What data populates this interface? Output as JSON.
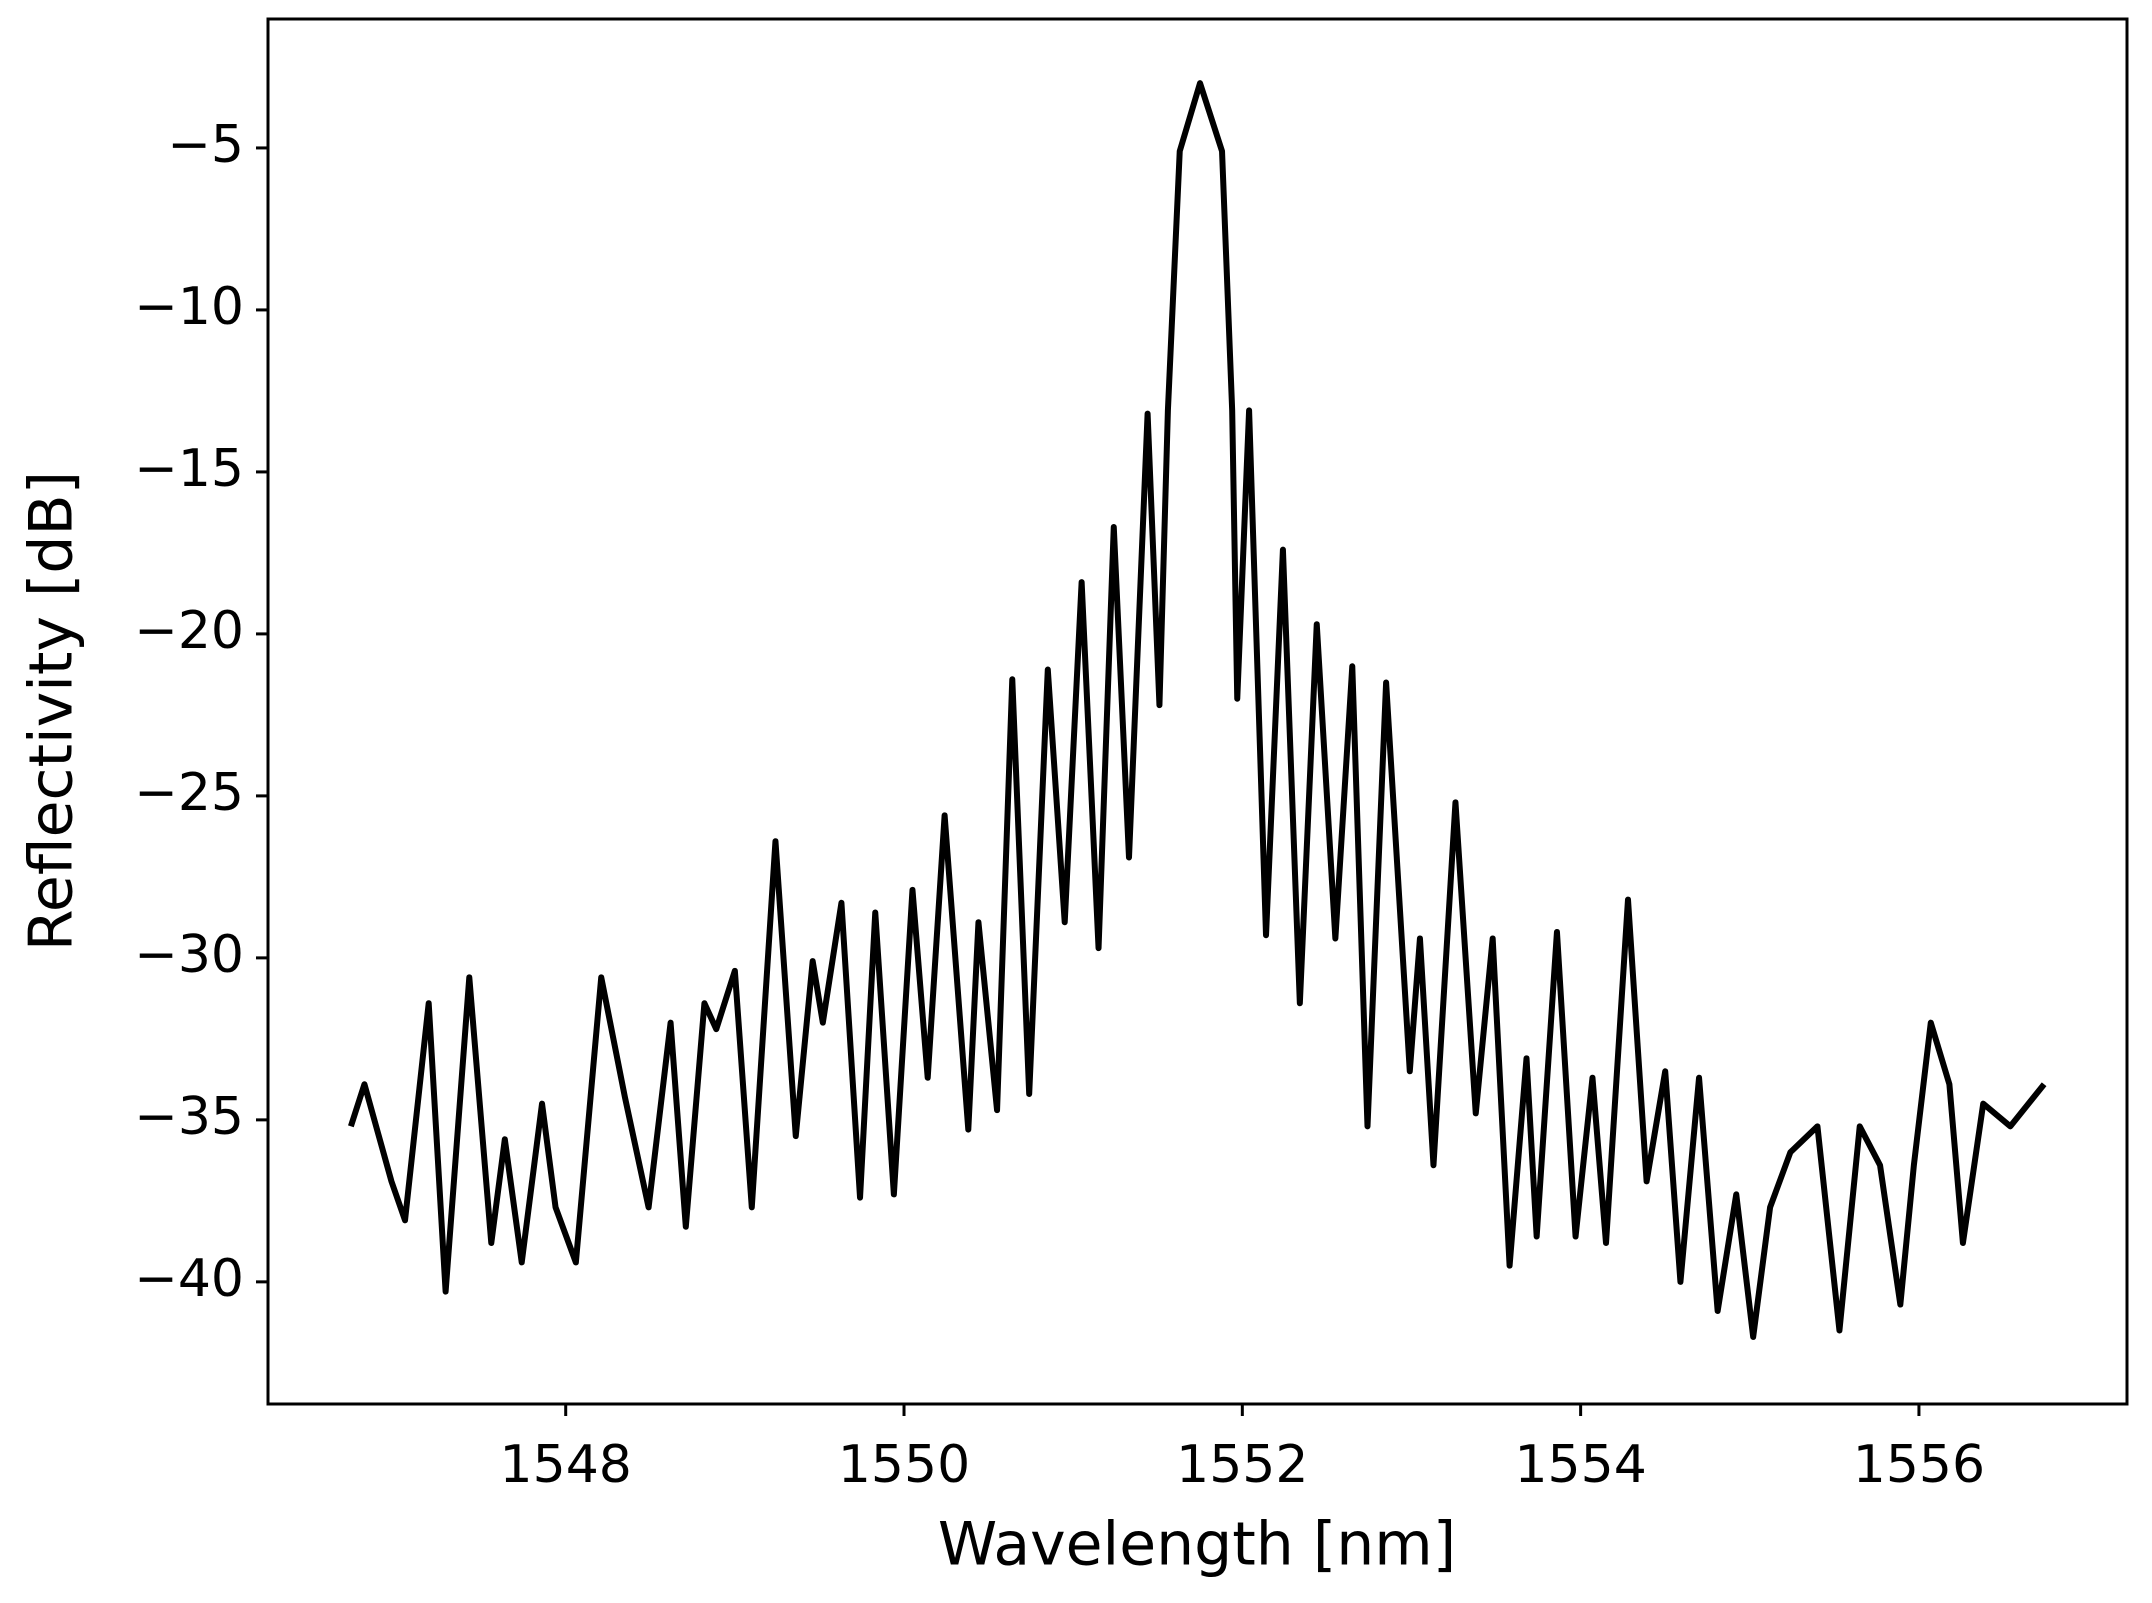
{
  "chart_data": {
    "type": "line",
    "x_label": "Wavelength [nm]",
    "y_label": "Reflectivity [dB]",
    "xlim": [
      1546.24,
      1557.23
    ],
    "ylim": [
      -43.77,
      -1.02
    ],
    "xticks": [
      1548,
      1550,
      1552,
      1554,
      1556
    ],
    "yticks": [
      {
        "value": -40,
        "label": "−40"
      },
      {
        "value": -35,
        "label": "−35"
      },
      {
        "value": -30,
        "label": "−30"
      },
      {
        "value": -25,
        "label": "−25"
      },
      {
        "value": -20,
        "label": "−20"
      },
      {
        "value": -15,
        "label": "−15"
      },
      {
        "value": -10,
        "label": "−10"
      },
      {
        "value": -5,
        "label": "−5"
      }
    ],
    "series": [
      {
        "color": "#000000",
        "x": [
          1546.73,
          1546.81,
          1546.97,
          1547.05,
          1547.19,
          1547.29,
          1547.43,
          1547.56,
          1547.64,
          1547.74,
          1547.86,
          1547.94,
          1548.06,
          1548.21,
          1548.35,
          1548.49,
          1548.62,
          1548.71,
          1548.82,
          1548.89,
          1549.0,
          1549.1,
          1549.24,
          1549.36,
          1549.46,
          1549.52,
          1549.63,
          1549.74,
          1549.83,
          1549.94,
          1550.05,
          1550.14,
          1550.24,
          1550.38,
          1550.44,
          1550.55,
          1550.64,
          1550.74,
          1550.85,
          1550.95,
          1551.05,
          1551.15,
          1551.24,
          1551.33,
          1551.44,
          1551.51,
          1551.56,
          1551.63,
          1551.75,
          1551.88,
          1551.94,
          1551.97,
          1552.04,
          1552.14,
          1552.24,
          1552.34,
          1552.44,
          1552.55,
          1552.65,
          1552.74,
          1552.85,
          1552.99,
          1553.05,
          1553.13,
          1553.26,
          1553.38,
          1553.48,
          1553.58,
          1553.68,
          1553.74,
          1553.86,
          1553.97,
          1554.07,
          1554.15,
          1554.28,
          1554.39,
          1554.5,
          1554.59,
          1554.7,
          1554.81,
          1554.92,
          1555.02,
          1555.12,
          1555.24,
          1555.4,
          1555.53,
          1555.65,
          1555.77,
          1555.89,
          1555.97,
          1556.07,
          1556.18,
          1556.26,
          1556.38,
          1556.54,
          1556.74
        ],
        "values": [
          -35.2,
          -33.9,
          -36.9,
          -38.1,
          -31.4,
          -40.3,
          -30.6,
          -38.8,
          -35.6,
          -39.4,
          -34.5,
          -37.7,
          -39.4,
          -30.6,
          -34.3,
          -37.7,
          -32.0,
          -38.3,
          -31.4,
          -32.2,
          -30.4,
          -37.7,
          -26.4,
          -35.5,
          -30.1,
          -32.0,
          -28.3,
          -37.4,
          -28.6,
          -37.3,
          -27.9,
          -33.7,
          -25.6,
          -35.3,
          -28.9,
          -34.7,
          -21.4,
          -34.2,
          -21.1,
          -28.9,
          -18.4,
          -29.7,
          -16.7,
          -26.9,
          -13.2,
          -22.2,
          -13.1,
          -5.1,
          -3.0,
          -5.1,
          -13.1,
          -22.0,
          -13.1,
          -29.3,
          -17.4,
          -31.4,
          -19.7,
          -29.4,
          -21.0,
          -35.2,
          -21.5,
          -33.5,
          -29.4,
          -36.4,
          -25.2,
          -34.8,
          -29.4,
          -39.5,
          -33.1,
          -38.6,
          -29.2,
          -38.6,
          -33.7,
          -38.8,
          -28.2,
          -36.9,
          -33.5,
          -40.0,
          -33.7,
          -40.9,
          -37.3,
          -41.7,
          -37.7,
          -36.0,
          -35.2,
          -41.5,
          -35.2,
          -36.4,
          -40.7,
          -36.4,
          -32.0,
          -33.9,
          -38.8,
          -34.5,
          -35.2,
          -33.9
        ]
      }
    ]
  }
}
